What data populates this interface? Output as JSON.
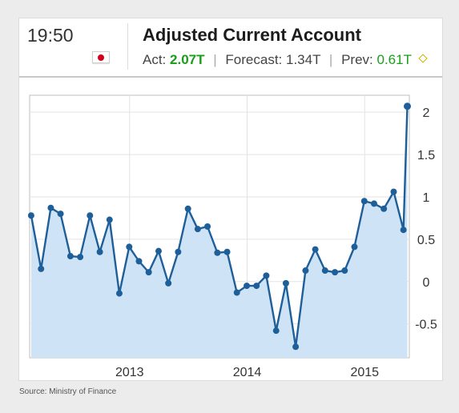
{
  "header": {
    "time": "19:50",
    "title": "Adjusted Current Account",
    "actual_label": "Act:",
    "actual_value": "2.07T",
    "forecast_label": "Forecast:",
    "forecast_value": "1.34T",
    "previous_label": "Prev:",
    "previous_value": "0.61T",
    "flag_icon": "japan-flag-icon",
    "revision_icon": "diamond-icon"
  },
  "source": "Source: Ministry of Finance",
  "colors": {
    "line": "#1f5f99",
    "fill": "#cfe3f7",
    "green": "#1a9e1a",
    "grid": "#e3e3e3"
  },
  "chart_data": {
    "type": "area",
    "xlim": [
      2012.15,
      2015.38
    ],
    "ylim": [
      -0.9,
      2.2
    ],
    "x_ticks": [
      2013,
      2014,
      2015
    ],
    "x_tick_labels": [
      "2013",
      "2014",
      "2015"
    ],
    "y_ticks": [
      -0.5,
      0,
      0.5,
      1,
      1.5,
      2
    ],
    "y_tick_labels": [
      "-0.5",
      "0",
      "0.5",
      "1",
      "1.5",
      "2"
    ],
    "grid": true,
    "x": [
      2012.163,
      2012.247,
      2012.33,
      2012.413,
      2012.497,
      2012.58,
      2012.663,
      2012.747,
      2012.83,
      2012.913,
      2012.997,
      2013.08,
      2013.163,
      2013.247,
      2013.33,
      2013.413,
      2013.497,
      2013.58,
      2013.663,
      2013.747,
      2013.83,
      2013.913,
      2013.997,
      2014.08,
      2014.163,
      2014.247,
      2014.33,
      2014.413,
      2014.497,
      2014.58,
      2014.663,
      2014.747,
      2014.83,
      2014.913,
      2014.997,
      2015.08,
      2015.163,
      2015.247,
      2015.33,
      2015.363
    ],
    "values": [
      0.78,
      0.15,
      0.87,
      0.8,
      0.3,
      0.29,
      0.78,
      0.35,
      0.73,
      -0.14,
      0.41,
      0.24,
      0.11,
      0.36,
      -0.02,
      0.35,
      0.86,
      0.62,
      0.65,
      0.34,
      0.35,
      -0.13,
      -0.05,
      -0.05,
      0.07,
      -0.58,
      -0.02,
      -0.77,
      0.13,
      0.38,
      0.13,
      0.11,
      0.13,
      0.41,
      0.95,
      0.92,
      0.86,
      1.06,
      0.61,
      2.07
    ]
  }
}
